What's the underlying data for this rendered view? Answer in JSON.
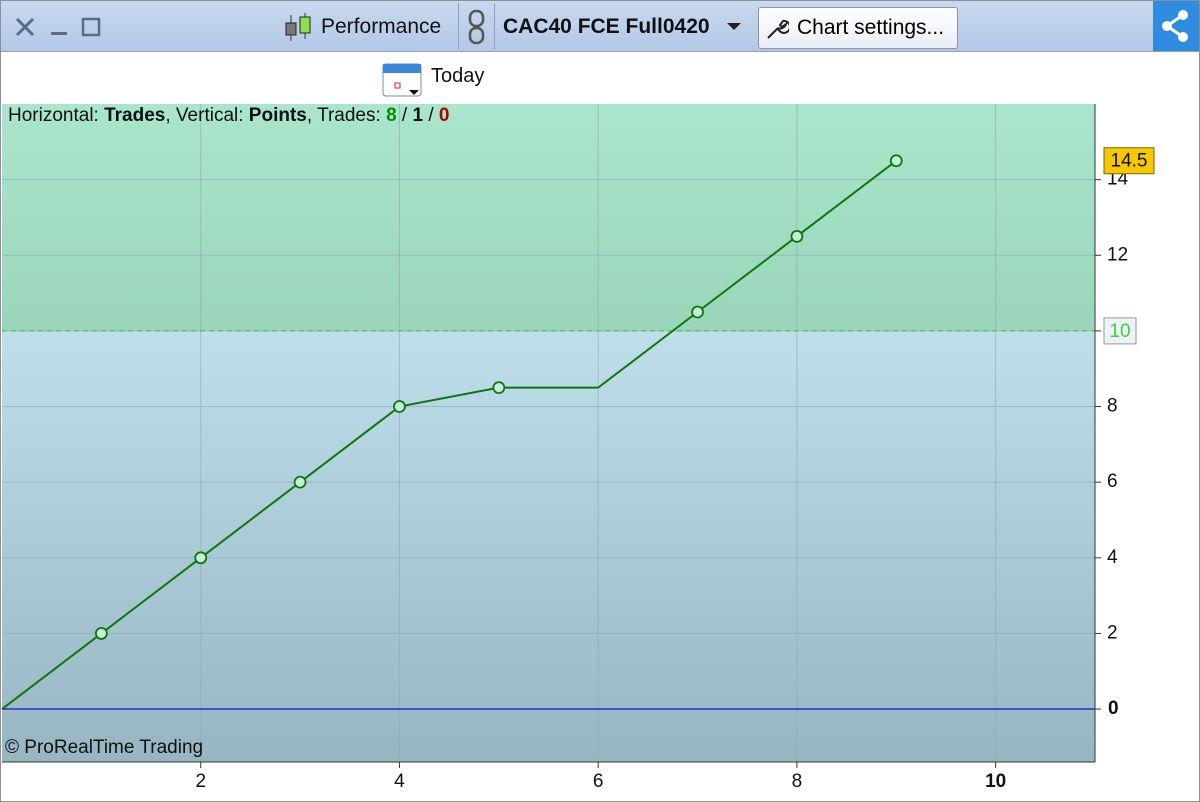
{
  "toolbar": {
    "performance": "Performance",
    "instrument": "CAC40 FCE Full0420",
    "settings": "Chart settings...",
    "today": "Today"
  },
  "legend": [
    "Horizontal: ",
    "Trades",
    ", Vertical: ",
    "Points",
    ", Trades: ",
    "8",
    " / ",
    "1",
    " / ",
    "0"
  ],
  "watermark": "© ProRealTime Trading",
  "chart_data": {
    "type": "line",
    "x": [
      0,
      1,
      2,
      3,
      4,
      5,
      6,
      7,
      8,
      9
    ],
    "values": [
      0,
      2,
      4,
      6,
      8,
      8.5,
      8.5,
      10.5,
      12.5,
      14.5
    ],
    "markers": [
      false,
      true,
      true,
      true,
      true,
      true,
      false,
      true,
      true,
      true
    ],
    "color": "#0a7a0a",
    "threshold": 10,
    "xlim": [
      0,
      11
    ],
    "xticks": [
      2,
      4,
      6,
      8,
      10
    ],
    "ylim": [
      -1.4,
      16
    ],
    "yticks": [
      0,
      2,
      4,
      6,
      8,
      10,
      12,
      14
    ],
    "grid": true
  }
}
